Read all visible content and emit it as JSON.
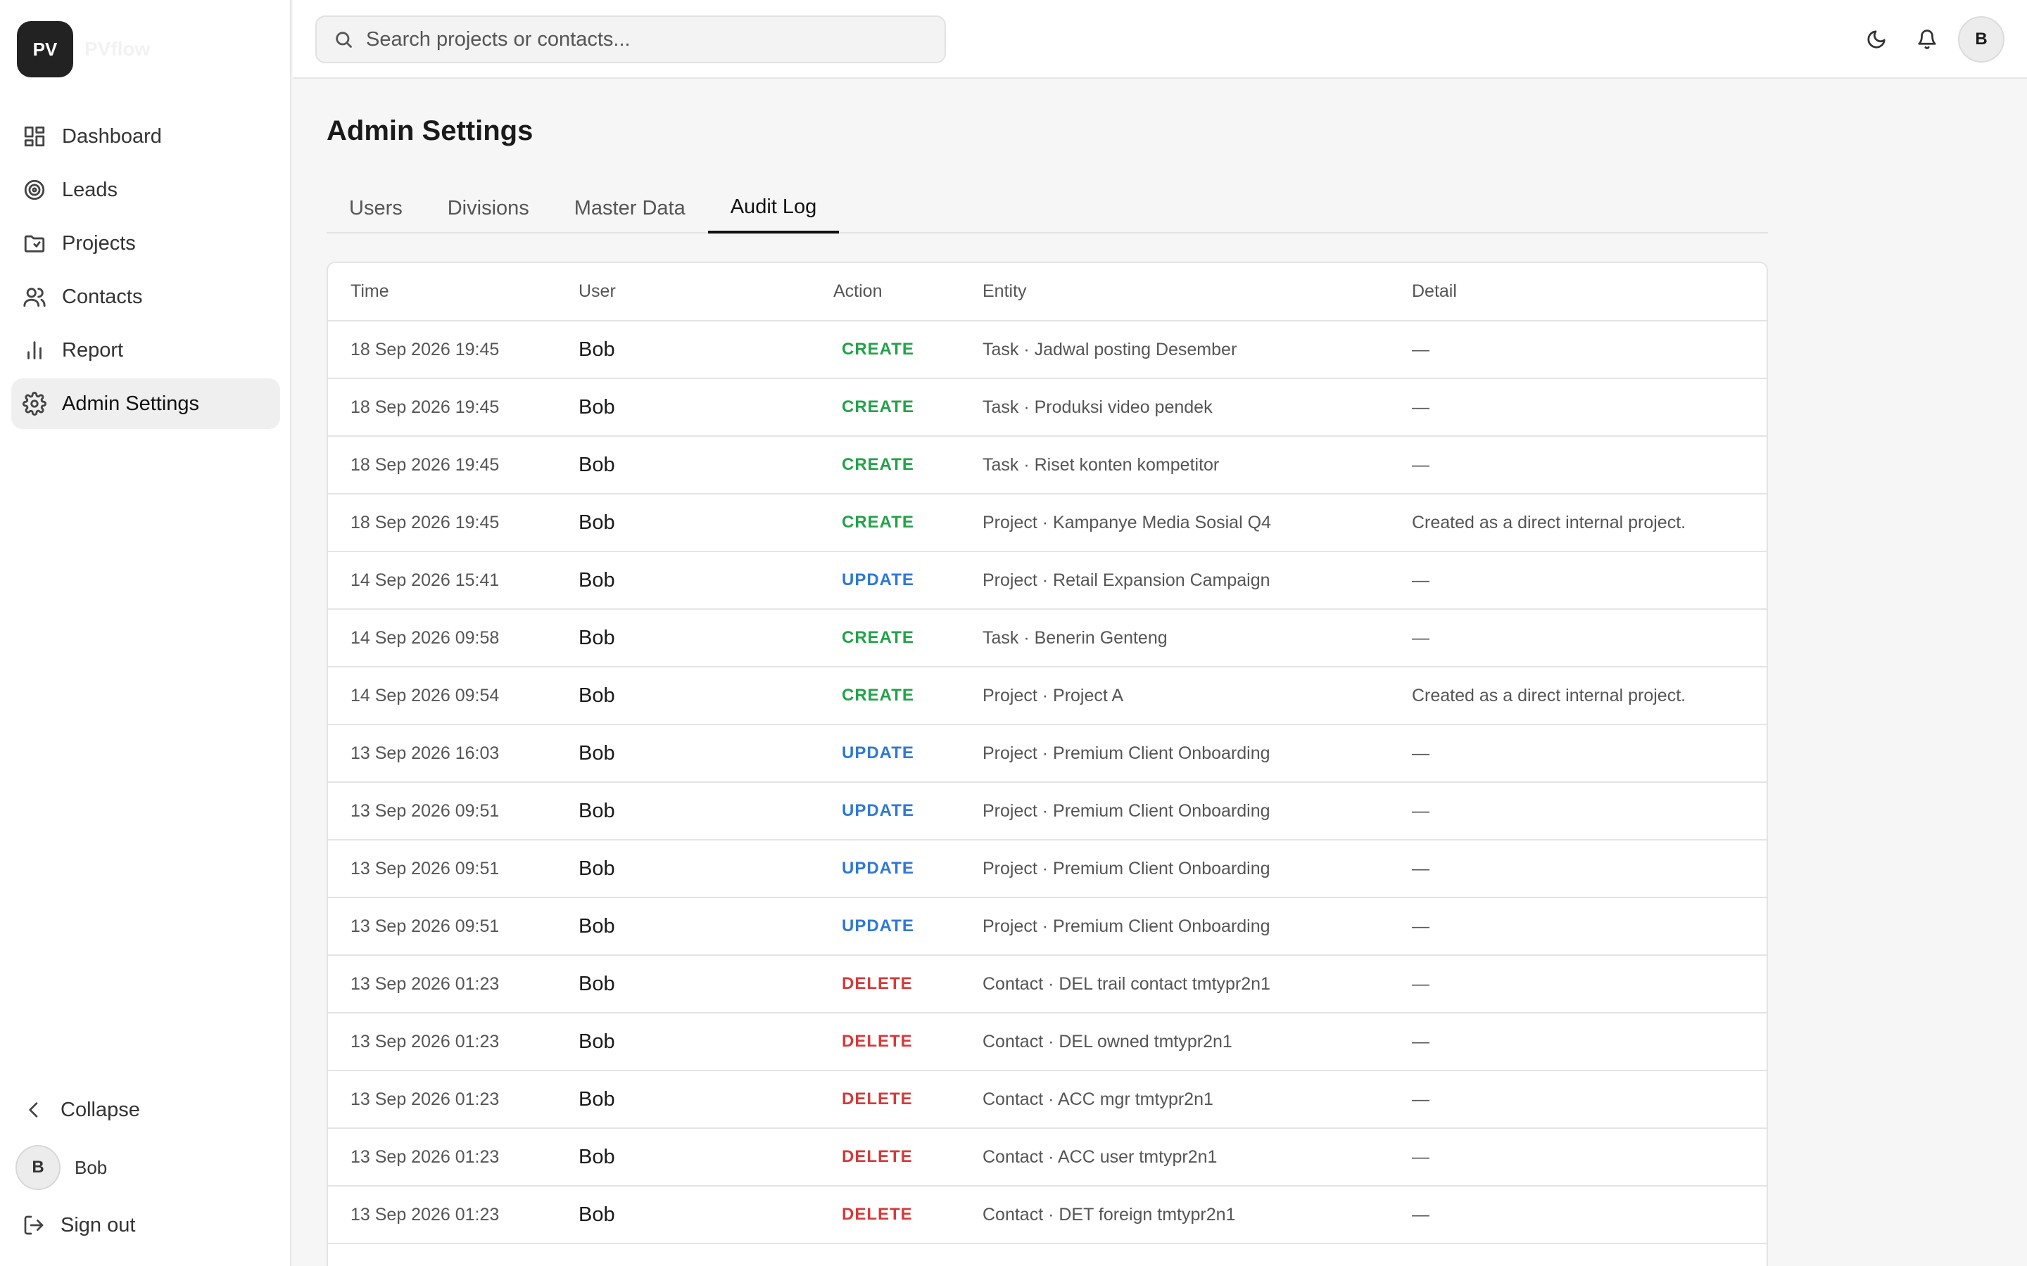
{
  "brand": {
    "logo_text": "PV",
    "name": "PVflow"
  },
  "sidebar": {
    "items": [
      {
        "label": "Dashboard",
        "icon": "dashboard-icon"
      },
      {
        "label": "Leads",
        "icon": "target-icon"
      },
      {
        "label": "Projects",
        "icon": "folder-icon"
      },
      {
        "label": "Contacts",
        "icon": "users-icon"
      },
      {
        "label": "Report",
        "icon": "bar-chart-icon"
      },
      {
        "label": "Admin Settings",
        "icon": "gear-icon"
      }
    ],
    "collapse_label": "Collapse",
    "user": {
      "initial": "B",
      "name": "Bob"
    },
    "sign_out_label": "Sign out"
  },
  "topbar": {
    "search_placeholder": "Search projects or contacts...",
    "avatar_initial": "B"
  },
  "page": {
    "title": "Admin Settings",
    "tabs": [
      "Users",
      "Divisions",
      "Master Data",
      "Audit Log"
    ],
    "active_tab": "Audit Log"
  },
  "table": {
    "headers": [
      "Time",
      "User",
      "Action",
      "Entity",
      "Detail"
    ],
    "rows": [
      {
        "time": "18 Sep 2026 19:45",
        "user": "Bob",
        "action": "CREATE",
        "entity": "Task · Jadwal posting Desember",
        "detail": "—"
      },
      {
        "time": "18 Sep 2026 19:45",
        "user": "Bob",
        "action": "CREATE",
        "entity": "Task · Produksi video pendek",
        "detail": "—"
      },
      {
        "time": "18 Sep 2026 19:45",
        "user": "Bob",
        "action": "CREATE",
        "entity": "Task · Riset konten kompetitor",
        "detail": "—"
      },
      {
        "time": "18 Sep 2026 19:45",
        "user": "Bob",
        "action": "CREATE",
        "entity": "Project · Kampanye Media Sosial Q4",
        "detail": "Created as a direct internal project."
      },
      {
        "time": "14 Sep 2026 15:41",
        "user": "Bob",
        "action": "UPDATE",
        "entity": "Project · Retail Expansion Campaign",
        "detail": "—"
      },
      {
        "time": "14 Sep 2026 09:58",
        "user": "Bob",
        "action": "CREATE",
        "entity": "Task · Benerin Genteng",
        "detail": "—"
      },
      {
        "time": "14 Sep 2026 09:54",
        "user": "Bob",
        "action": "CREATE",
        "entity": "Project · Project A",
        "detail": "Created as a direct internal project."
      },
      {
        "time": "13 Sep 2026 16:03",
        "user": "Bob",
        "action": "UPDATE",
        "entity": "Project · Premium Client Onboarding",
        "detail": "—"
      },
      {
        "time": "13 Sep 2026 09:51",
        "user": "Bob",
        "action": "UPDATE",
        "entity": "Project · Premium Client Onboarding",
        "detail": "—"
      },
      {
        "time": "13 Sep 2026 09:51",
        "user": "Bob",
        "action": "UPDATE",
        "entity": "Project · Premium Client Onboarding",
        "detail": "—"
      },
      {
        "time": "13 Sep 2026 09:51",
        "user": "Bob",
        "action": "UPDATE",
        "entity": "Project · Premium Client Onboarding",
        "detail": "—"
      },
      {
        "time": "13 Sep 2026 01:23",
        "user": "Bob",
        "action": "DELETE",
        "entity": "Contact · DEL trail contact tmtypr2n1",
        "detail": "—"
      },
      {
        "time": "13 Sep 2026 01:23",
        "user": "Bob",
        "action": "DELETE",
        "entity": "Contact · DEL owned tmtypr2n1",
        "detail": "—"
      },
      {
        "time": "13 Sep 2026 01:23",
        "user": "Bob",
        "action": "DELETE",
        "entity": "Contact · ACC mgr tmtypr2n1",
        "detail": "—"
      },
      {
        "time": "13 Sep 2026 01:23",
        "user": "Bob",
        "action": "DELETE",
        "entity": "Contact · ACC user tmtypr2n1",
        "detail": "—"
      },
      {
        "time": "13 Sep 2026 01:23",
        "user": "Bob",
        "action": "DELETE",
        "entity": "Contact · DET foreign tmtypr2n1",
        "detail": "—"
      }
    ]
  },
  "colors": {
    "create": "#22a24a",
    "update": "#2f78d6",
    "delete": "#d43a3a"
  }
}
